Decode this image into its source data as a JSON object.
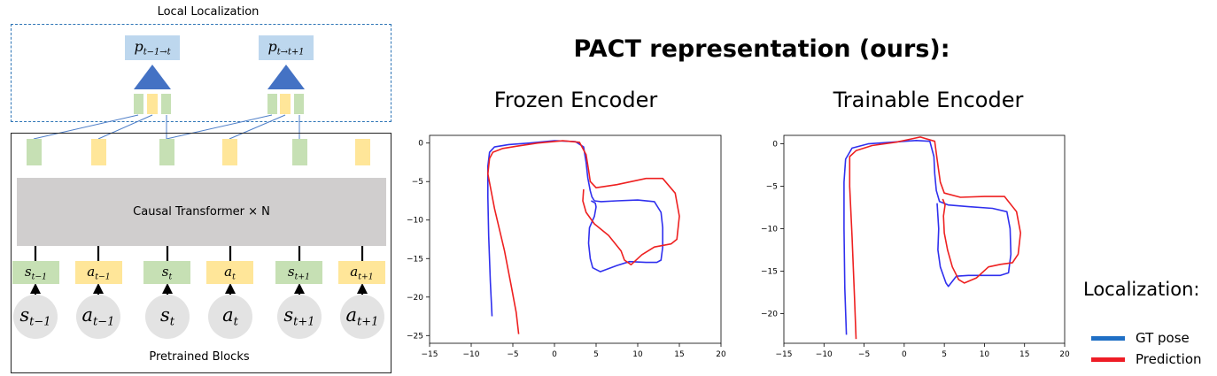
{
  "diagram": {
    "local_title": "Local Localization",
    "local_heads": [
      {
        "base": "p",
        "sub": "t−1→t"
      },
      {
        "base": "p",
        "sub": "t→t+1"
      }
    ],
    "transformer_label": "Causal Transformer × N",
    "pretrained_label": "Pretrained Blocks",
    "input_tokens": [
      {
        "base": "s",
        "sub": "t−1",
        "kind": "state"
      },
      {
        "base": "a",
        "sub": "t−1",
        "kind": "action"
      },
      {
        "base": "s",
        "sub": "t",
        "kind": "state"
      },
      {
        "base": "a",
        "sub": "t",
        "kind": "action"
      },
      {
        "base": "s",
        "sub": "t+1",
        "kind": "state"
      },
      {
        "base": "a",
        "sub": "t+1",
        "kind": "action"
      }
    ],
    "colors": {
      "state": "#c6e0b4",
      "action": "#ffe699",
      "head_box": "#bdd7ee",
      "triangle": "#4472c4",
      "transformer": "#d0cece",
      "circle": "#e3e3e3",
      "dashed": "#2e75b6"
    }
  },
  "results": {
    "title": "PACT representation (ours):",
    "legend_title": "Localization:",
    "legend": [
      {
        "name": "GT pose",
        "color": "#1f6fc5"
      },
      {
        "name": "Prediction",
        "color": "#ee1c25"
      }
    ]
  },
  "chart_data": [
    {
      "type": "line",
      "title": "Frozen Encoder",
      "xlim": [
        -15,
        20
      ],
      "ylim": [
        -26,
        1
      ],
      "x_ticks": [
        -15,
        -10,
        -5,
        0,
        5,
        10,
        15,
        20
      ],
      "y_ticks": [
        0,
        -5,
        -10,
        -15,
        -20,
        -25
      ],
      "grid": false,
      "series": [
        {
          "name": "GT pose",
          "color": "#3030ee",
          "x": [
            -7.5,
            -7.7,
            -7.9,
            -8.0,
            -8.0,
            -7.8,
            -7.2,
            -5.5,
            -3,
            0,
            2.5,
            3.5,
            3.8,
            4.0,
            4.3,
            4.5,
            4.8,
            5.6,
            7.5,
            10,
            12,
            12.8,
            13.0,
            13.0,
            12.8,
            12.3,
            11.0,
            9.0,
            7.5,
            5.5,
            4.6,
            4.3,
            4.1,
            4.2,
            4.8,
            5.0,
            4.9,
            4.6,
            4.4
          ],
          "y": [
            -22.5,
            -18,
            -12,
            -7,
            -3,
            -1.2,
            -0.5,
            -0.2,
            0,
            0.3,
            0.2,
            -0.5,
            -2.5,
            -4.5,
            -6.2,
            -7.0,
            -7.5,
            -7.6,
            -7.5,
            -7.4,
            -7.6,
            -9.0,
            -11,
            -13.5,
            -15.2,
            -15.5,
            -15.5,
            -15.4,
            -15.9,
            -16.7,
            -16.2,
            -15.0,
            -13,
            -11,
            -9.5,
            -8.3,
            -7.8,
            -7.6,
            -7.5
          ]
        },
        {
          "name": "Prediction",
          "color": "#ee2020",
          "x": [
            -4.3,
            -4.6,
            -5.2,
            -6.0,
            -7.2,
            -8.0,
            -7.8,
            -7.4,
            -6.2,
            -4.5,
            -2.0,
            1.0,
            3.0,
            3.8,
            4.1,
            4.3,
            5.0,
            7.5,
            11.0,
            13.0,
            14.5,
            15.0,
            14.7,
            14.0,
            12.0,
            10.5,
            9.2,
            8.4,
            8.0,
            6.5,
            4.8,
            3.8,
            3.4,
            3.5
          ],
          "y": [
            -24.8,
            -22,
            -18.5,
            -14,
            -8.5,
            -4,
            -2,
            -1.2,
            -0.7,
            -0.4,
            0,
            0.3,
            0.1,
            -1.5,
            -3.5,
            -5,
            -5.8,
            -5.4,
            -4.6,
            -4.6,
            -6.5,
            -9.5,
            -12.5,
            -13.1,
            -13.5,
            -14.5,
            -15.8,
            -15.2,
            -14,
            -12,
            -10.5,
            -9,
            -7.5,
            -6.0
          ]
        }
      ]
    },
    {
      "type": "line",
      "title": "Trainable Encoder",
      "xlim": [
        -15,
        20
      ],
      "ylim": [
        -23.5,
        1
      ],
      "x_ticks": [
        -15,
        -10,
        -5,
        0,
        5,
        10,
        15,
        20
      ],
      "y_ticks": [
        0,
        -5,
        -10,
        -15,
        -20
      ],
      "grid": false,
      "series": [
        {
          "name": "GT pose",
          "color": "#3030ee",
          "x": [
            -7.2,
            -7.4,
            -7.5,
            -7.5,
            -7.3,
            -6.5,
            -4.5,
            -1.5,
            1.5,
            3.2,
            3.7,
            3.8,
            4.0,
            4.4,
            5.5,
            8.0,
            11.0,
            12.8,
            13.2,
            13.3,
            13.0,
            12.0,
            10.0,
            8.0,
            6.5,
            5.5,
            5.2,
            4.5,
            4.2,
            4.3,
            4.2,
            4.1
          ],
          "y": [
            -22.5,
            -17,
            -10,
            -4.5,
            -1.8,
            -0.5,
            0,
            0.2,
            0.4,
            0.3,
            -1.5,
            -3.5,
            -5.5,
            -6.8,
            -7.2,
            -7.4,
            -7.6,
            -8.0,
            -10,
            -13,
            -15.2,
            -15.5,
            -15.5,
            -15.5,
            -15.6,
            -16.8,
            -16.4,
            -14.5,
            -12.5,
            -10,
            -8.5,
            -7.0
          ]
        },
        {
          "name": "Prediction",
          "color": "#ee2020",
          "x": [
            -6.0,
            -6.2,
            -6.5,
            -6.8,
            -6.8,
            -6.0,
            -4.0,
            -1.0,
            2.0,
            3.8,
            4.2,
            4.5,
            5.0,
            7.0,
            10.0,
            12.5,
            14.0,
            14.5,
            14.2,
            13.5,
            12.0,
            10.5,
            9.0,
            7.5,
            6.8,
            6.0,
            5.4,
            5.0,
            4.9,
            5.1,
            4.8
          ],
          "y": [
            -23,
            -18,
            -11,
            -5,
            -1.5,
            -0.8,
            -0.2,
            0.2,
            0.8,
            0.3,
            -2.5,
            -4.5,
            -5.8,
            -6.3,
            -6.2,
            -6.2,
            -8.0,
            -10.5,
            -13.0,
            -14.0,
            -14.2,
            -14.5,
            -15.8,
            -16.4,
            -16.0,
            -14.5,
            -12.5,
            -10.5,
            -8.5,
            -7.2,
            -6.5
          ]
        }
      ]
    }
  ]
}
